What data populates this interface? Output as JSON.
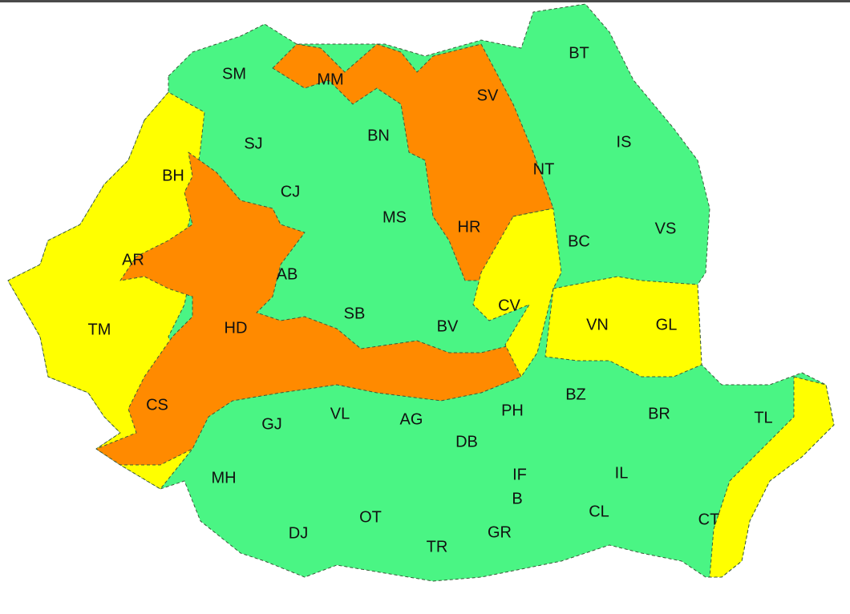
{
  "map": {
    "colors": {
      "green": "#4af584",
      "yellow": "#ffff00",
      "orange": "#ff8a00",
      "border": "#3a5a3a"
    },
    "counties": [
      {
        "code": "SM",
        "level": "green"
      },
      {
        "code": "MM",
        "level": "orange"
      },
      {
        "code": "SV",
        "level": "orange"
      },
      {
        "code": "BT",
        "level": "green"
      },
      {
        "code": "SJ",
        "level": "green"
      },
      {
        "code": "BN",
        "level": "green"
      },
      {
        "code": "IS",
        "level": "green"
      },
      {
        "code": "NT",
        "level": "orange"
      },
      {
        "code": "BH",
        "level": "yellow"
      },
      {
        "code": "CJ",
        "level": "green"
      },
      {
        "code": "MS",
        "level": "green"
      },
      {
        "code": "HR",
        "level": "orange"
      },
      {
        "code": "VS",
        "level": "green"
      },
      {
        "code": "BC",
        "level": "green"
      },
      {
        "code": "AR",
        "level": "yellow"
      },
      {
        "code": "AB",
        "level": "orange"
      },
      {
        "code": "CV",
        "level": "yellow"
      },
      {
        "code": "TM",
        "level": "yellow"
      },
      {
        "code": "HD",
        "level": "orange"
      },
      {
        "code": "SB",
        "level": "green"
      },
      {
        "code": "BV",
        "level": "green"
      },
      {
        "code": "VN",
        "level": "yellow"
      },
      {
        "code": "GL",
        "level": "yellow"
      },
      {
        "code": "CS",
        "level": "orange"
      },
      {
        "code": "GJ",
        "level": "green"
      },
      {
        "code": "VL",
        "level": "green"
      },
      {
        "code": "AG",
        "level": "green"
      },
      {
        "code": "DB",
        "level": "green"
      },
      {
        "code": "PH",
        "level": "green"
      },
      {
        "code": "BZ",
        "level": "green"
      },
      {
        "code": "BR",
        "level": "green"
      },
      {
        "code": "TL",
        "level": "green"
      },
      {
        "code": "MH",
        "level": "green"
      },
      {
        "code": "IF",
        "level": "green"
      },
      {
        "code": "B",
        "level": "green"
      },
      {
        "code": "IL",
        "level": "green"
      },
      {
        "code": "DJ",
        "level": "green"
      },
      {
        "code": "OT",
        "level": "green"
      },
      {
        "code": "TR",
        "level": "green"
      },
      {
        "code": "GR",
        "level": "green"
      },
      {
        "code": "CL",
        "level": "green"
      },
      {
        "code": "CT",
        "level": "yellow"
      }
    ]
  }
}
